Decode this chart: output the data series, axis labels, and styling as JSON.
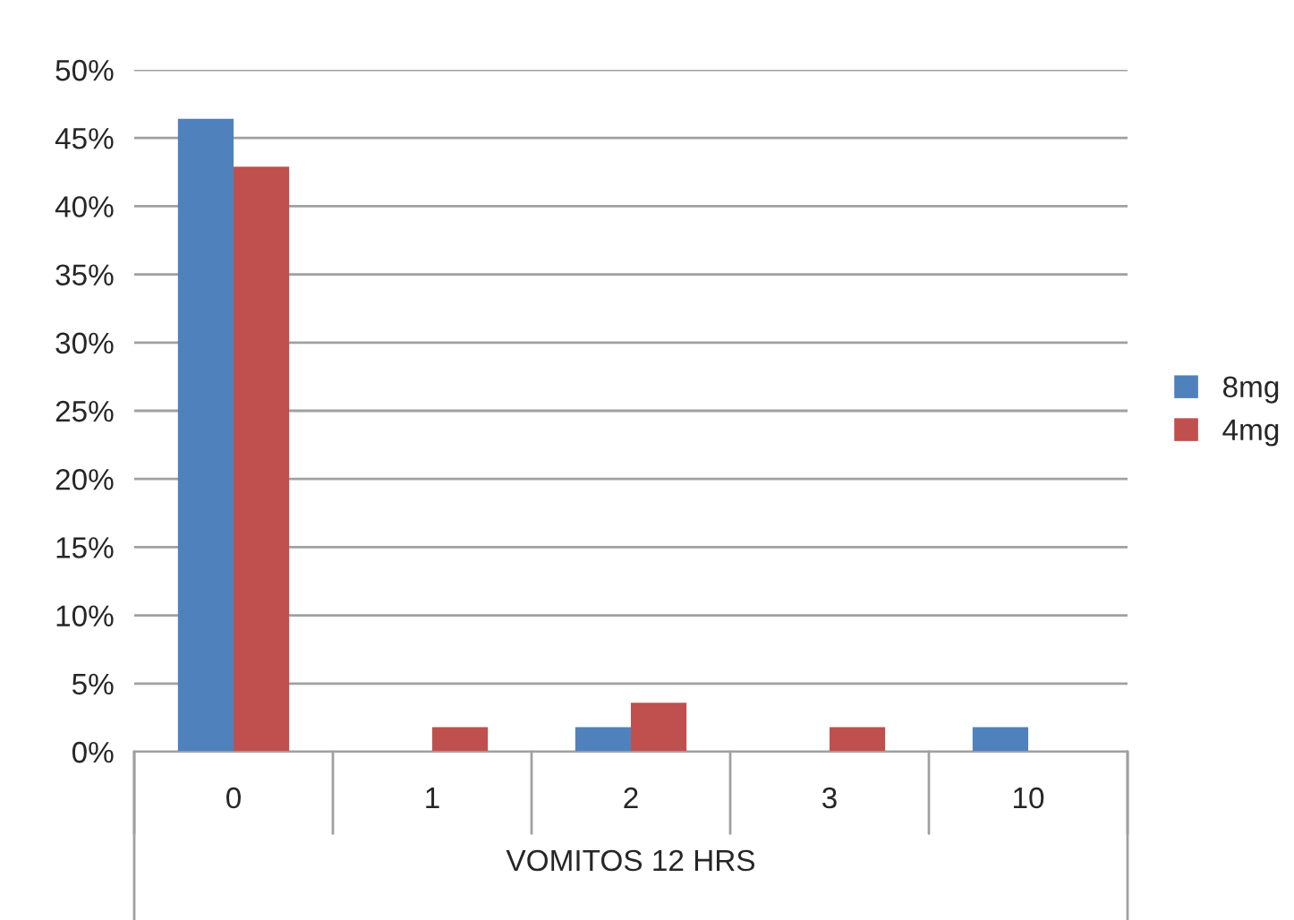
{
  "chart_data": {
    "type": "bar",
    "xlabel": "VOMITOS 12 HRS",
    "categories": [
      "0",
      "1",
      "2",
      "3",
      "10"
    ],
    "series": [
      {
        "name": "8mg",
        "color": "#4f81bd",
        "values": [
          46.4,
          null,
          1.8,
          null,
          1.8
        ]
      },
      {
        "name": "4mg",
        "color": "#c0504d",
        "values": [
          42.9,
          1.8,
          3.6,
          1.8,
          null
        ]
      }
    ],
    "ylim": [
      0,
      50
    ],
    "yticks": [
      {
        "value": 0,
        "label": "0%"
      },
      {
        "value": 5,
        "label": "5%"
      },
      {
        "value": 10,
        "label": "10%"
      },
      {
        "value": 15,
        "label": "15%"
      },
      {
        "value": 20,
        "label": "20%"
      },
      {
        "value": 25,
        "label": "25%"
      },
      {
        "value": 30,
        "label": "30%"
      },
      {
        "value": 35,
        "label": "35%"
      },
      {
        "value": 40,
        "label": "40%"
      },
      {
        "value": 45,
        "label": "45%"
      },
      {
        "value": 50,
        "label": "50%"
      }
    ],
    "grid": "y",
    "legend": "right"
  }
}
